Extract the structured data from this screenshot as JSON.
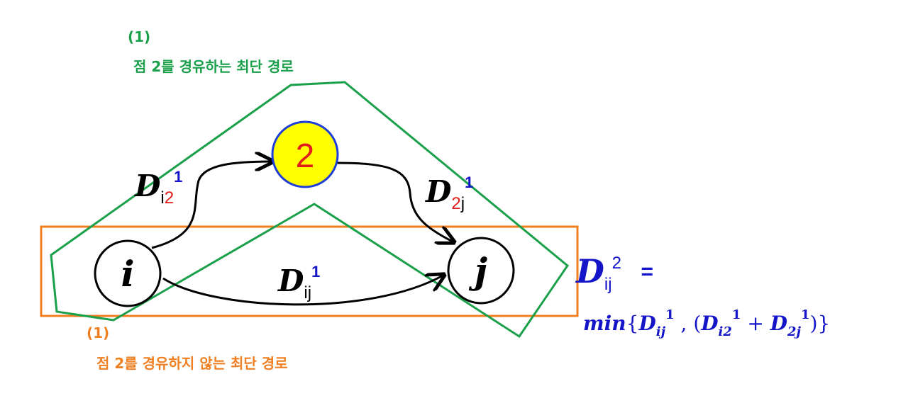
{
  "colors": {
    "green": "#1aa04a",
    "orange": "#f07f22",
    "node_fill": "#ffff00",
    "node_border": "#1d3dd8",
    "red": "#e31b1b",
    "blue": "#1414c8",
    "black": "#000000"
  },
  "green_group": {
    "number": "(1)",
    "caption": "점 2를 경유하는 최단 경로"
  },
  "orange_group": {
    "number": "(1)",
    "caption": "점 2를 경유하지 않는 최단 경로"
  },
  "nodes": {
    "mid": "2",
    "source": "i",
    "target": "j"
  },
  "edges": {
    "i2": {
      "letter": "D",
      "sub_first": "i",
      "sub_second": "2",
      "sup": "1"
    },
    "2j": {
      "letter": "D",
      "sub_first": "2",
      "sub_second": "j",
      "sup": "1"
    },
    "ij": {
      "letter": "D",
      "sub": "ij",
      "sup": "1"
    }
  },
  "result": {
    "letter": "D",
    "sub": "ij",
    "sup": "2",
    "equals": "=",
    "formula": {
      "fn": "min",
      "open": "{",
      "t1_letter": "D",
      "t1_sub": "ij",
      "t1_sup": "1",
      "comma": " , (",
      "t2_letter": "D",
      "t2_sub": "i2",
      "t2_sup": "1",
      "plus": " + ",
      "t3_letter": "D",
      "t3_sub": "2j",
      "t3_sup": "1",
      "close": ")}"
    }
  }
}
